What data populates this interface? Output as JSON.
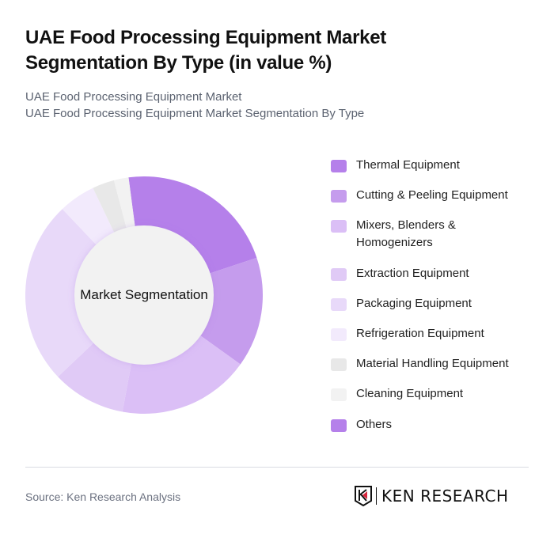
{
  "header": {
    "title": "UAE Food Processing Equipment Market Segmentation By Type (in value %)",
    "subtitle_line1": "UAE Food Processing Equipment Market",
    "subtitle_line2": "UAE Food Processing Equipment Market Segmentation By Type"
  },
  "chart": {
    "center_label": "Market Segmentation"
  },
  "legend": [
    {
      "label": "Thermal Equipment",
      "color": "#b580ea"
    },
    {
      "label": "Cutting & Peeling Equipment",
      "color": "#c59ced"
    },
    {
      "label": "Mixers, Blenders & Homogenizers",
      "color": "#dbbff6"
    },
    {
      "label": "Extraction Equipment",
      "color": "#e0caf6"
    },
    {
      "label": "Packaging Equipment",
      "color": "#e8d9f9"
    },
    {
      "label": "Refrigeration Equipment",
      "color": "#f2eafc"
    },
    {
      "label": "Material Handling Equipment",
      "color": "#e8e8e8"
    },
    {
      "label": "Cleaning Equipment",
      "color": "#f2f2f2"
    },
    {
      "label": "Others",
      "color": "#b580ea"
    }
  ],
  "footer": {
    "source": "Source: Ken Research Analysis",
    "logo_text": "KEN RESEARCH"
  },
  "chart_data": {
    "type": "pie",
    "title": "UAE Food Processing Equipment Market Segmentation By Type (in value %)",
    "subtitle": "UAE Food Processing Equipment Market Segmentation By Type",
    "center_label": "Market Segmentation",
    "donut": true,
    "categories": [
      "Thermal Equipment",
      "Cutting & Peeling Equipment",
      "Mixers, Blenders & Homogenizers",
      "Extraction Equipment",
      "Packaging Equipment",
      "Refrigeration Equipment",
      "Material Handling Equipment",
      "Cleaning Equipment",
      "Others"
    ],
    "values": [
      22,
      15,
      18,
      10,
      25,
      5,
      3,
      2,
      0
    ],
    "colors": [
      "#b580ea",
      "#c59ced",
      "#dbbff6",
      "#e0caf6",
      "#e8d9f9",
      "#f2eafc",
      "#e8e8e8",
      "#f2f2f2",
      "#b580ea"
    ],
    "start_angle_deg": -7.5,
    "legend_position": "right"
  }
}
